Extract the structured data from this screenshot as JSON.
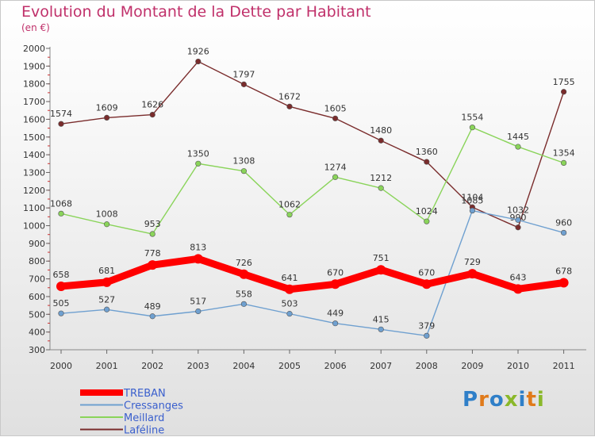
{
  "header": {
    "title": "Evolution du Montant de la Dette par Habitant",
    "unit": "(en €)"
  },
  "brand": {
    "letters": [
      "P",
      "r",
      "o",
      "x",
      "i",
      "t",
      "i"
    ],
    "colors": [
      "#2f7fc8",
      "#e07a1a",
      "#2f7fc8",
      "#8ab82a",
      "#2f7fc8",
      "#e07a1a",
      "#8ab82a"
    ]
  },
  "chart_data": {
    "type": "line",
    "title": "Evolution du Montant de la Dette par Habitant",
    "ylabel": "(en €)",
    "xlabel": "",
    "x": [
      2000,
      2001,
      2002,
      2003,
      2004,
      2005,
      2006,
      2007,
      2008,
      2009,
      2010,
      2011
    ],
    "ylim": [
      300,
      2000
    ],
    "yticks": [
      300,
      400,
      500,
      600,
      700,
      800,
      900,
      1000,
      1100,
      1200,
      1300,
      1400,
      1500,
      1600,
      1700,
      1800,
      1900,
      2000
    ],
    "grid": false,
    "legend_position": "bottom-left",
    "series": [
      {
        "name": "Laféline",
        "color": "#7a2c2c",
        "values": [
          1574,
          1609,
          1626,
          1926,
          1797,
          1672,
          1605,
          1480,
          1360,
          1104,
          990,
          1755
        ],
        "labels": [
          "1574",
          "1609",
          "1626",
          "1926",
          "1797",
          "1672",
          "1605",
          "1480",
          "1360",
          "1104",
          "990",
          "1755"
        ]
      },
      {
        "name": "Meillard",
        "color": "#8ad45a",
        "values": [
          1068,
          1008,
          953,
          1350,
          1308,
          1062,
          1274,
          1212,
          1024,
          1554,
          1445,
          1354
        ],
        "labels": [
          "1068",
          "1008",
          "953",
          "1350",
          "1308",
          "1062",
          "1274",
          "1212",
          "1024",
          "1554",
          "1445",
          "1354"
        ]
      },
      {
        "name": "Cressanges",
        "color": "#6fa0d0",
        "values": [
          505,
          527,
          489,
          517,
          558,
          503,
          449,
          415,
          379,
          1085,
          1032,
          960
        ],
        "labels": [
          "505",
          "527",
          "489",
          "517",
          "558",
          "503",
          "449",
          "415",
          "379",
          "1085",
          "1032",
          "960"
        ]
      },
      {
        "name": "TREBAN",
        "color": "#ff0000",
        "values": [
          658,
          681,
          778,
          813,
          726,
          641,
          670,
          751,
          670,
          729,
          643,
          678
        ],
        "labels": [
          "658",
          "681",
          "778",
          "813",
          "726",
          "641",
          "670",
          "751",
          "670",
          "729",
          "643",
          "678"
        ]
      }
    ],
    "legend": [
      {
        "name": "TREBAN",
        "color": "#ff0000"
      },
      {
        "name": "Cressanges",
        "color": "#6fa0d0"
      },
      {
        "name": "Meillard",
        "color": "#8ad45a"
      },
      {
        "name": "Laféline",
        "color": "#7a2c2c"
      }
    ]
  }
}
